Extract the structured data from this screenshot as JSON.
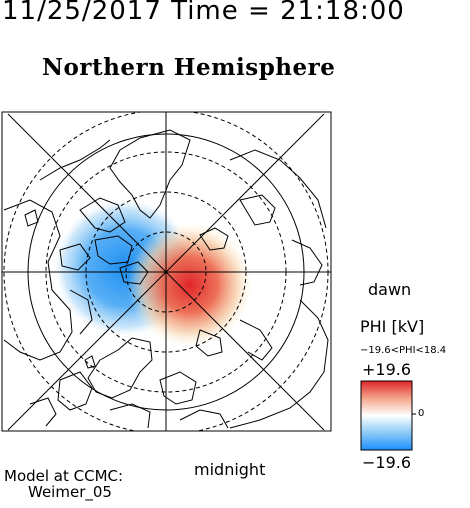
{
  "header": {
    "timestamp": "11/25/2017 Time = 21:18:00",
    "title": "Northern Hemisphere"
  },
  "map": {
    "projection": "north-polar",
    "grid": "dashed latitude circles, radial meridian lines",
    "potential_pattern": {
      "negative_cell_color": "#1e90ff",
      "positive_cell_color": "#e0252a"
    },
    "orientation_labels": {
      "dawn": "dawn",
      "midnight": "midnight"
    }
  },
  "colorbar": {
    "quantity_label": "PHI [kV]",
    "range_text": "−19.6<PHI<18.4",
    "max_label": "+19.6",
    "min_label": "−19.6",
    "zero_label": "0",
    "max_value": 19.6,
    "min_value": -19.6,
    "colors": [
      "#e0252a",
      "#f4a58a",
      "#ffffff",
      "#8ccaf5",
      "#1e90ff"
    ]
  },
  "footer": {
    "model_line": "Model at CCMC:",
    "model_name": "Weimer_05"
  }
}
